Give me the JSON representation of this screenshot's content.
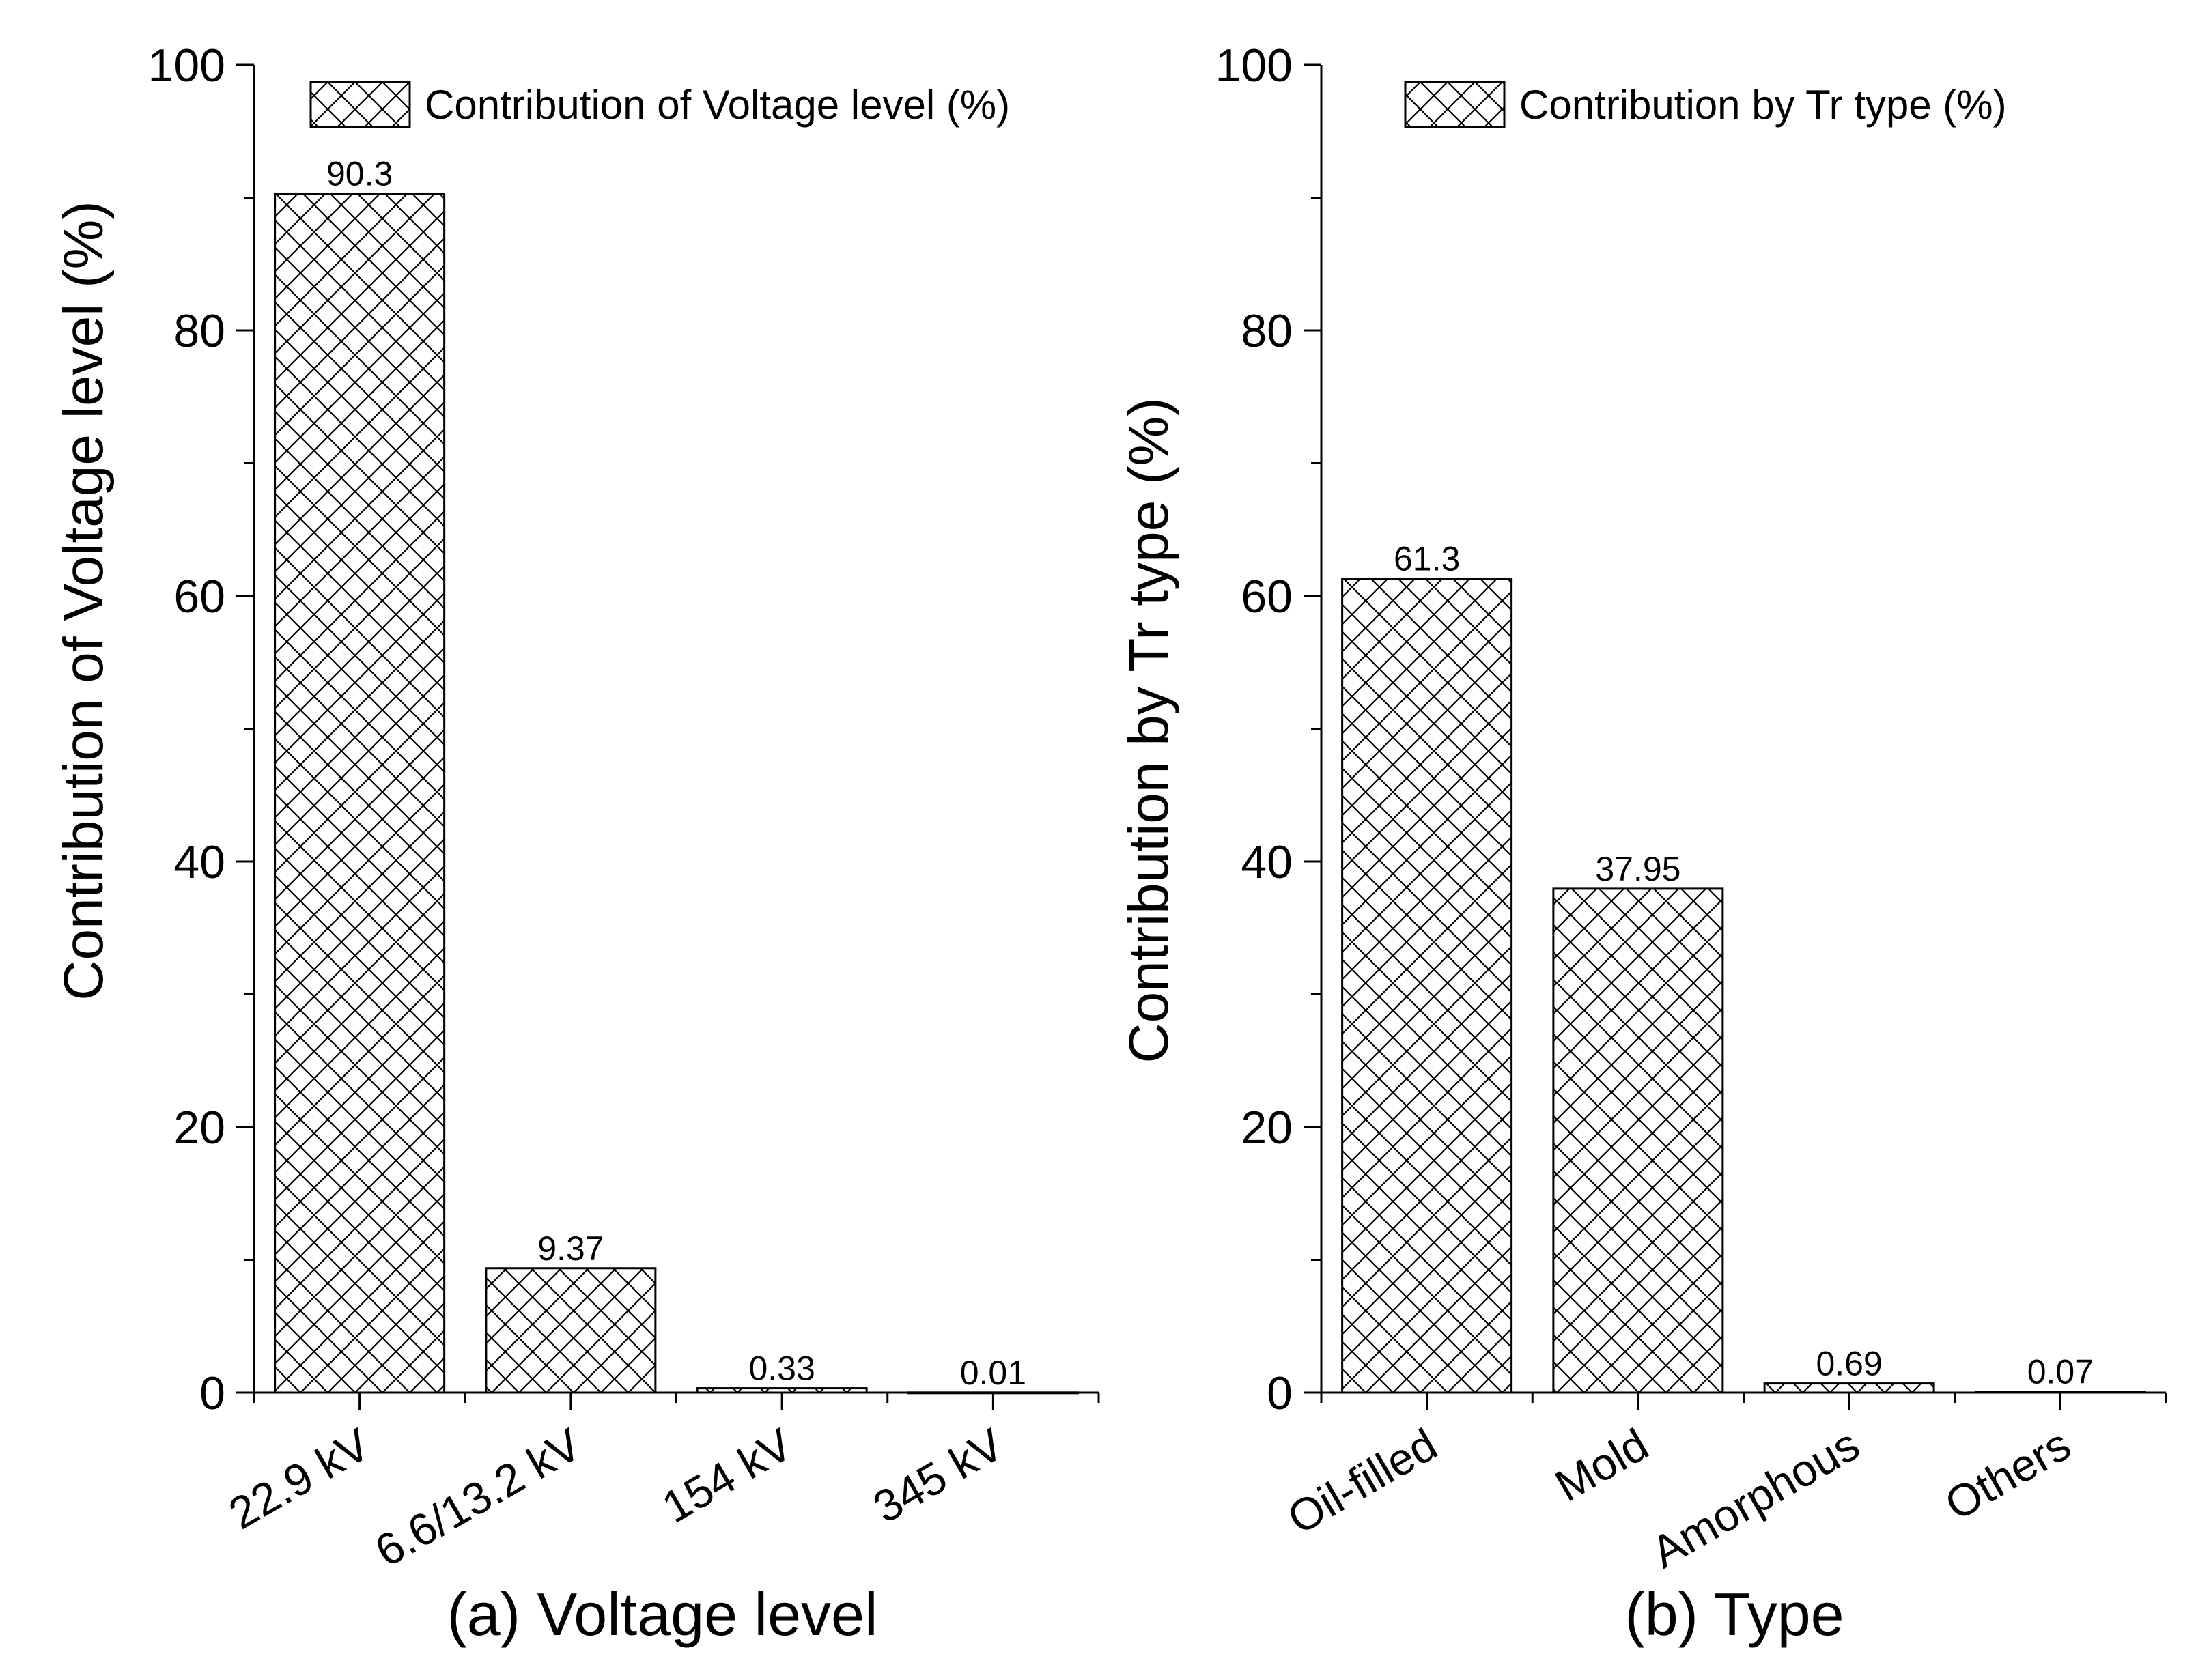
{
  "chart_data": [
    {
      "type": "bar",
      "categories": [
        "22.9 kV",
        "6.6/13.2 kV",
        "154 kV",
        "345 kV"
      ],
      "series": [
        {
          "name": "Contribution of Voltage level (%)",
          "values": [
            90.3,
            9.37,
            0.33,
            0.01
          ]
        }
      ],
      "data_labels": [
        "90.3",
        "9.37",
        "0.33",
        "0.01"
      ],
      "ylabel": "Contribution of Voltage level (%)",
      "xlabel": "(a) Voltage level",
      "ylim": [
        0,
        100
      ],
      "yticks": [
        0,
        20,
        40,
        60,
        80,
        100
      ],
      "yminor_step": 10,
      "legend_placement": "top",
      "hatch": "crosshatch",
      "grid": false
    },
    {
      "type": "bar",
      "categories": [
        "Oil-filled",
        "Mold",
        "Amorphous",
        "Others"
      ],
      "series": [
        {
          "name": "Contribution by Tr type (%)",
          "values": [
            61.3,
            37.95,
            0.69,
            0.07
          ]
        }
      ],
      "data_labels": [
        "61.3",
        "37.95",
        "0.69",
        "0.07"
      ],
      "ylabel": "Contribution by Tr type (%)",
      "xlabel": "(b) Type",
      "ylim": [
        0,
        100
      ],
      "yticks": [
        0,
        20,
        40,
        60,
        80,
        100
      ],
      "yminor_step": 10,
      "legend_placement": "top",
      "hatch": "crosshatch",
      "grid": false
    }
  ]
}
